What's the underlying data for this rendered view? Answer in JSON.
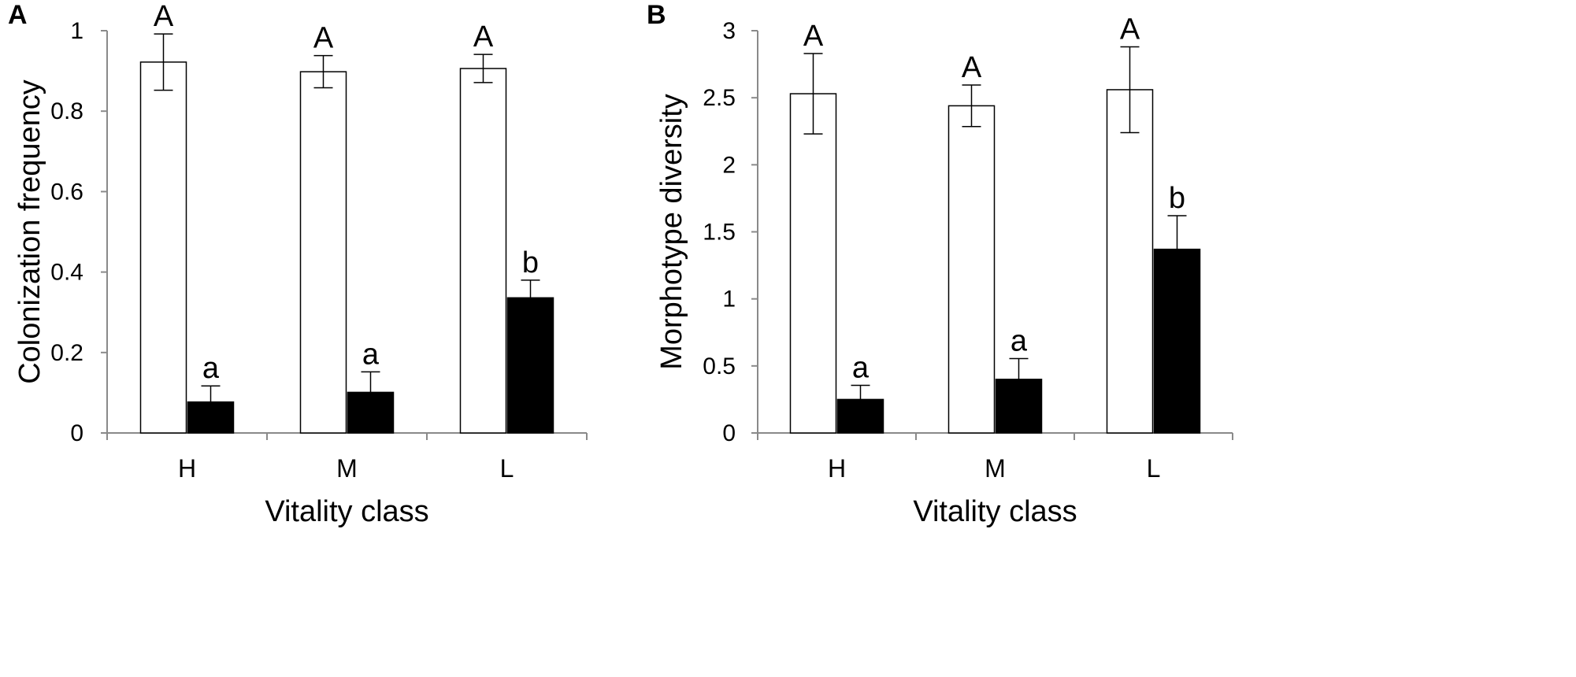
{
  "chart_data": [
    {
      "type": "bar",
      "panel": "A",
      "categories": [
        "H",
        "M",
        "L"
      ],
      "xlabel": "Vitality class",
      "ylabel": "Colonization frequency",
      "ylim": [
        0,
        1
      ],
      "yticks": [
        "0",
        "0.2",
        "0.4",
        "0.6",
        "0.8",
        "1"
      ],
      "series": [
        {
          "color": "#ffffff",
          "values": [
            0.922,
            0.898,
            0.906
          ],
          "errors": [
            0.07,
            0.04,
            0.035
          ],
          "labels": [
            "A",
            "A",
            "A"
          ]
        },
        {
          "color": "#000000",
          "values": [
            0.077,
            0.101,
            0.336
          ],
          "errors": [
            0.04,
            0.051,
            0.044
          ],
          "labels": [
            "a",
            "a",
            "b"
          ]
        }
      ]
    },
    {
      "type": "bar",
      "panel": "B",
      "categories": [
        "H",
        "M",
        "L"
      ],
      "xlabel": "Vitality class",
      "ylabel": "Morphotype diversity",
      "ylim": [
        0,
        3
      ],
      "yticks": [
        "0",
        "0.5",
        "1",
        "1.5",
        "2",
        "2.5",
        "3"
      ],
      "series": [
        {
          "color": "#ffffff",
          "values": [
            2.53,
            2.44,
            2.56
          ],
          "errors": [
            0.3,
            0.155,
            0.32
          ],
          "labels": [
            "A",
            "A",
            "A"
          ]
        },
        {
          "color": "#000000",
          "values": [
            0.25,
            0.4,
            1.37
          ],
          "errors": [
            0.105,
            0.155,
            0.25
          ],
          "labels": [
            "a",
            "a",
            "b"
          ]
        }
      ]
    }
  ]
}
